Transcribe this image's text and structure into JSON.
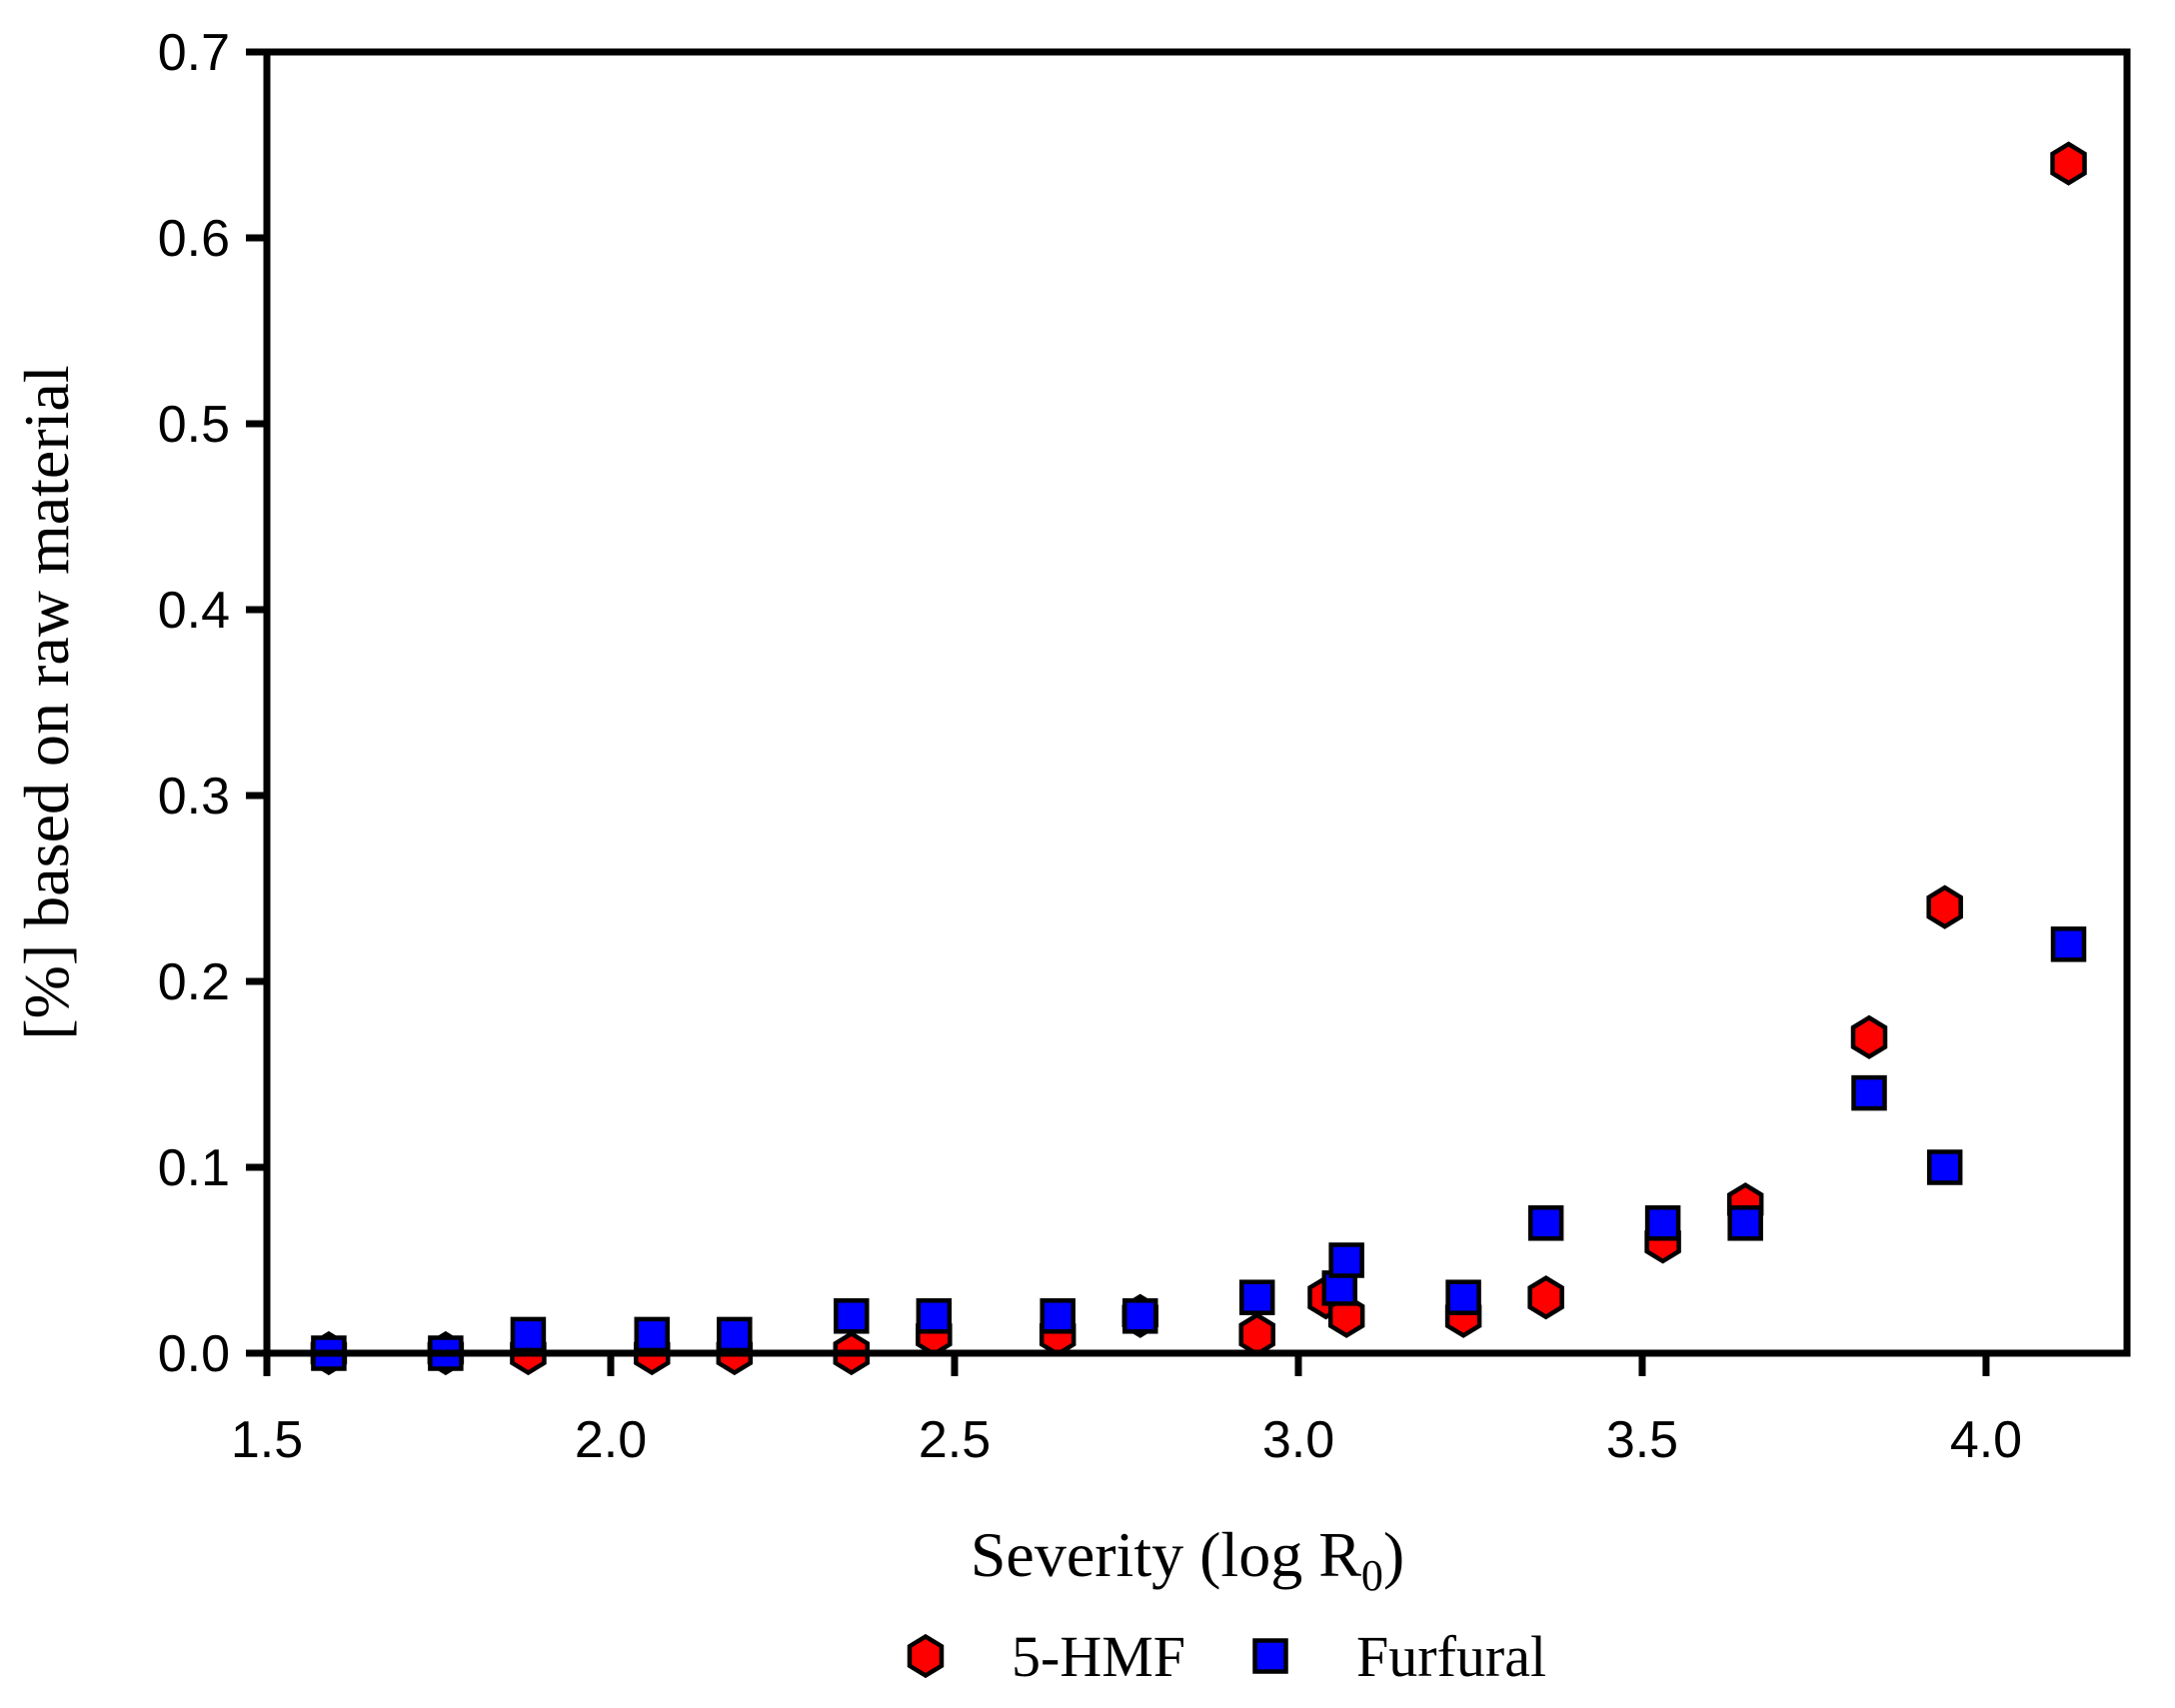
{
  "chart_data": {
    "type": "scatter",
    "title": "",
    "xlabel_main": "Severity (log R",
    "xlabel_sub": "0",
    "xlabel_suffix": ")",
    "ylabel": "[%] based on raw material",
    "xlim": [
      1.5,
      4.205
    ],
    "ylim": [
      0.0,
      0.7
    ],
    "x_ticks": [
      1.5,
      2.0,
      2.5,
      3.0,
      3.5,
      4.0
    ],
    "y_ticks": [
      0.0,
      0.1,
      0.2,
      0.3,
      0.4,
      0.5,
      0.6,
      0.7
    ],
    "grid": false,
    "legend_position": "bottom-center",
    "frame": "full-box",
    "series": [
      {
        "name": "5-HMF",
        "marker": "hexagon",
        "color": "#FF0000",
        "outline": "#000000",
        "points": [
          [
            1.59,
            0.0
          ],
          [
            1.76,
            0.0
          ],
          [
            1.88,
            0.0
          ],
          [
            2.06,
            0.0
          ],
          [
            2.18,
            0.0
          ],
          [
            2.35,
            0.0
          ],
          [
            2.47,
            0.01
          ],
          [
            2.65,
            0.01
          ],
          [
            2.77,
            0.02
          ],
          [
            2.94,
            0.01
          ],
          [
            3.04,
            0.03
          ],
          [
            3.07,
            0.02
          ],
          [
            3.24,
            0.02
          ],
          [
            3.36,
            0.03
          ],
          [
            3.53,
            0.06
          ],
          [
            3.65,
            0.08
          ],
          [
            3.83,
            0.17
          ],
          [
            3.94,
            0.24
          ],
          [
            4.12,
            0.64
          ]
        ]
      },
      {
        "name": "Furfural",
        "marker": "square",
        "color": "#0000FF",
        "outline": "#000000",
        "points": [
          [
            1.59,
            0.0
          ],
          [
            1.76,
            0.0
          ],
          [
            1.88,
            0.01
          ],
          [
            2.06,
            0.01
          ],
          [
            2.18,
            0.01
          ],
          [
            2.35,
            0.02
          ],
          [
            2.47,
            0.02
          ],
          [
            2.65,
            0.02
          ],
          [
            2.77,
            0.02
          ],
          [
            2.94,
            0.03
          ],
          [
            3.06,
            0.035
          ],
          [
            3.07,
            0.05
          ],
          [
            3.24,
            0.03
          ],
          [
            3.36,
            0.07
          ],
          [
            3.53,
            0.07
          ],
          [
            3.65,
            0.07
          ],
          [
            3.83,
            0.14
          ],
          [
            3.94,
            0.1
          ],
          [
            4.12,
            0.22
          ]
        ]
      }
    ]
  },
  "colors": {
    "background": "#FFFFFF",
    "axis": "#000000",
    "red_marker": "#FF0000",
    "blue_marker": "#0000FF"
  }
}
